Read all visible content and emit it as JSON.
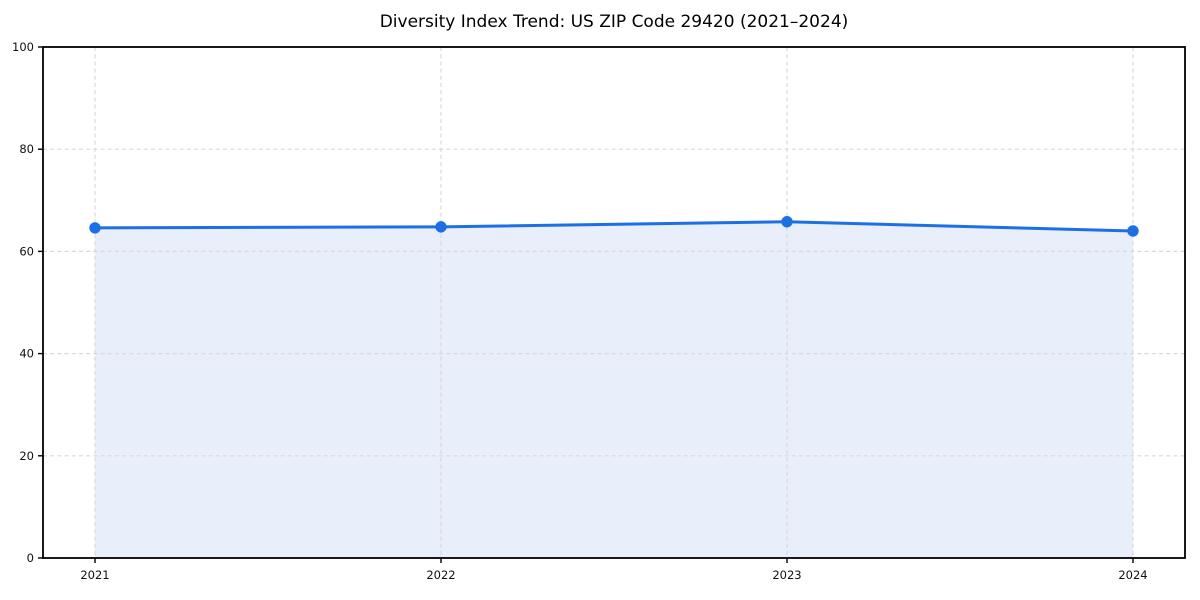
{
  "chart_data": {
    "type": "line",
    "title": "Diversity Index Trend: US ZIP Code 29420 (2021–2024)",
    "categories": [
      "2021",
      "2022",
      "2023",
      "2024"
    ],
    "series": [
      {
        "name": "Diversity Index",
        "values": [
          64.6,
          64.8,
          65.8,
          64.0
        ]
      }
    ],
    "xlabel": "",
    "ylabel": "",
    "ylim": [
      0,
      100
    ],
    "yticks": [
      0,
      20,
      40,
      60,
      80,
      100
    ],
    "grid": "dashed, horizontal and vertical",
    "legend": "none",
    "area_fill": true,
    "marker": "circle",
    "colors": {
      "line": "#1d6fe5",
      "marker": "#1d6fe5",
      "fill": "#e8effb",
      "grid": "#d9d9d9",
      "spine": "#000000",
      "tick_text": "#111111",
      "background": "#ffffff"
    }
  }
}
